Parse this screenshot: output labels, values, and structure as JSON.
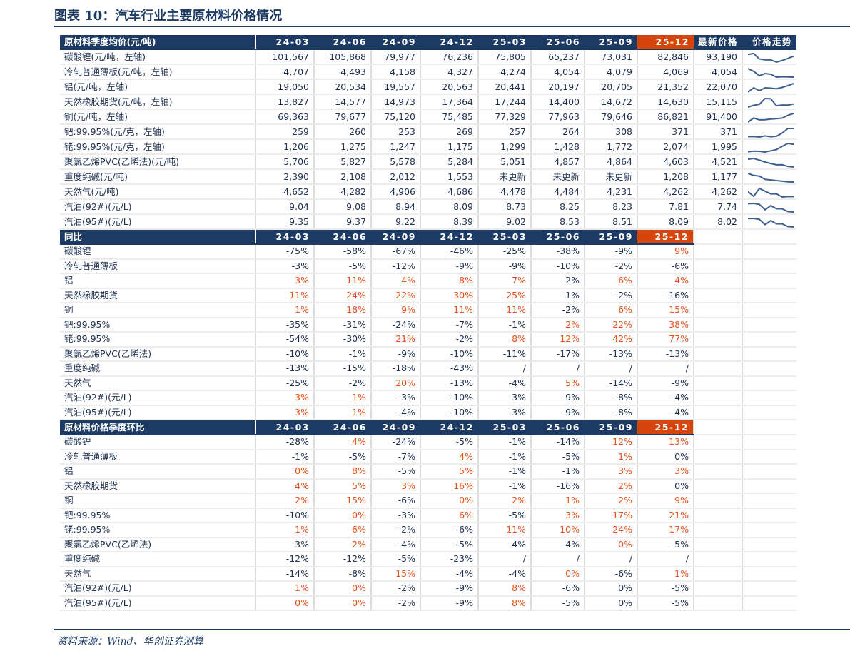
{
  "title": "图表 10：汽车行业主要原材料价格情况",
  "source": "资料来源：Wind、华创证券测算",
  "colors": {
    "header": "#1c3a63",
    "highlight": "#d6450c",
    "positive": "#e8501a",
    "text": "#1f3050",
    "sparkline": "#3d5f8f"
  },
  "periods": [
    "24-03",
    "24-06",
    "24-09",
    "24-12",
    "25-03",
    "25-06",
    "25-09",
    "25-12"
  ],
  "highlight_period": "25-12",
  "sections": [
    {
      "header": "原材料季度均价(元/吨)",
      "latest_label": "最新价格",
      "trend_label": "价格走势",
      "has_latest": true,
      "rows": [
        {
          "label": "碳酸锂(元/吨，左轴)",
          "values": [
            "101,567",
            "105,868",
            "79,977",
            "76,236",
            "75,805",
            "65,237",
            "73,031",
            "82,846"
          ],
          "latest": "93,190"
        },
        {
          "label": "冷轧普通薄板(元/吨，左轴)",
          "values": [
            "4,707",
            "4,493",
            "4,158",
            "4,327",
            "4,274",
            "4,054",
            "4,079",
            "4,069"
          ],
          "latest": "4,054"
        },
        {
          "label": "铝(元/吨，左轴)",
          "values": [
            "19,050",
            "20,534",
            "19,557",
            "20,563",
            "20,441",
            "20,197",
            "20,705",
            "21,352"
          ],
          "latest": "22,070"
        },
        {
          "label": "天然橡胶期货(元/吨，左轴)",
          "values": [
            "13,827",
            "14,577",
            "14,973",
            "17,364",
            "17,244",
            "14,400",
            "14,672",
            "14,630"
          ],
          "latest": "15,115"
        },
        {
          "label": "铜(元/吨，左轴)",
          "values": [
            "69,363",
            "79,677",
            "75,120",
            "75,485",
            "77,329",
            "77,963",
            "79,646",
            "86,821"
          ],
          "latest": "91,400"
        },
        {
          "label": "钯:99.95%(元/克，左轴)",
          "values": [
            "259",
            "260",
            "253",
            "269",
            "257",
            "264",
            "308",
            "371"
          ],
          "latest": "371"
        },
        {
          "label": "铑:99.95%(元/克，左轴)",
          "values": [
            "1,206",
            "1,275",
            "1,247",
            "1,175",
            "1,299",
            "1,428",
            "1,772",
            "2,074"
          ],
          "latest": "1,995"
        },
        {
          "label": "聚氯乙烯PVC(乙烯法)(元/吨)",
          "values": [
            "5,706",
            "5,827",
            "5,578",
            "5,284",
            "5,051",
            "4,857",
            "4,864",
            "4,603"
          ],
          "latest": "4,521"
        },
        {
          "label": "重度纯碱(元/吨)",
          "values": [
            "2,390",
            "2,108",
            "2,012",
            "1,553",
            "未更新",
            "未更新",
            "未更新",
            "1,208"
          ],
          "latest": "1,177"
        },
        {
          "label": "天然气(元/吨)",
          "values": [
            "4,652",
            "4,282",
            "4,906",
            "4,686",
            "4,478",
            "4,484",
            "4,231",
            "4,262"
          ],
          "latest": "4,262"
        },
        {
          "label": "汽油(92#)(元/L)",
          "values": [
            "9.04",
            "9.08",
            "8.94",
            "8.09",
            "8.73",
            "8.25",
            "8.23",
            "7.81"
          ],
          "latest": "7.74"
        },
        {
          "label": "汽油(95#)(元/L)",
          "values": [
            "9.35",
            "9.37",
            "9.22",
            "8.39",
            "9.02",
            "8.53",
            "8.51",
            "8.09"
          ],
          "latest": "8.02"
        }
      ]
    },
    {
      "header": "同比",
      "has_latest": false,
      "rows": [
        {
          "label": "碳酸锂",
          "values": [
            "-75%",
            "-58%",
            "-67%",
            "-46%",
            "-25%",
            "-38%",
            "-9%",
            "9%"
          ],
          "positive": "00000001"
        },
        {
          "label": "冷轧普通薄板",
          "values": [
            "-3%",
            "-5%",
            "-12%",
            "-9%",
            "-9%",
            "-10%",
            "-2%",
            "-6%"
          ],
          "positive": "00000000"
        },
        {
          "label": "铝",
          "values": [
            "3%",
            "11%",
            "4%",
            "8%",
            "7%",
            "-2%",
            "6%",
            "4%"
          ],
          "positive": "11111011"
        },
        {
          "label": "天然橡胶期货",
          "values": [
            "11%",
            "24%",
            "22%",
            "30%",
            "25%",
            "-1%",
            "-2%",
            "-16%"
          ],
          "positive": "11111000"
        },
        {
          "label": "铜",
          "values": [
            "1%",
            "18%",
            "9%",
            "11%",
            "11%",
            "-2%",
            "6%",
            "15%"
          ],
          "positive": "11111011"
        },
        {
          "label": "钯:99.95%",
          "values": [
            "-35%",
            "-31%",
            "-24%",
            "-7%",
            "-1%",
            "2%",
            "22%",
            "38%"
          ],
          "positive": "00000111"
        },
        {
          "label": "铑:99.95%",
          "values": [
            "-54%",
            "-30%",
            "21%",
            "-2%",
            "8%",
            "12%",
            "42%",
            "77%"
          ],
          "positive": "00101111"
        },
        {
          "label": "聚氯乙烯PVC(乙烯法)",
          "values": [
            "-10%",
            "-1%",
            "-9%",
            "-10%",
            "-11%",
            "-17%",
            "-13%",
            "-13%"
          ],
          "positive": "00000000"
        },
        {
          "label": "重度纯碱",
          "values": [
            "-13%",
            "-15%",
            "-18%",
            "-43%",
            "/",
            "/",
            "/",
            "/"
          ],
          "positive": "00000000"
        },
        {
          "label": "天然气",
          "values": [
            "-25%",
            "-2%",
            "20%",
            "-13%",
            "-4%",
            "5%",
            "-14%",
            "-9%"
          ],
          "positive": "00100100"
        },
        {
          "label": "汽油(92#)(元/L)",
          "values": [
            "3%",
            "1%",
            "-3%",
            "-10%",
            "-3%",
            "-9%",
            "-8%",
            "-4%"
          ],
          "positive": "11000000"
        },
        {
          "label": "汽油(95#)(元/L)",
          "values": [
            "3%",
            "1%",
            "-4%",
            "-10%",
            "-3%",
            "-9%",
            "-8%",
            "-4%"
          ],
          "positive": "11000000"
        }
      ]
    },
    {
      "header": "原材料价格季度环比",
      "has_latest": false,
      "rows": [
        {
          "label": "碳酸锂",
          "values": [
            "-28%",
            "4%",
            "-24%",
            "-5%",
            "-1%",
            "-14%",
            "12%",
            "13%"
          ],
          "positive": "01000011"
        },
        {
          "label": "冷轧普通薄板",
          "values": [
            "-1%",
            "-5%",
            "-7%",
            "4%",
            "-1%",
            "-5%",
            "1%",
            "0%"
          ],
          "positive": "00010010"
        },
        {
          "label": "铝",
          "values": [
            "0%",
            "8%",
            "-5%",
            "5%",
            "-1%",
            "-1%",
            "3%",
            "3%"
          ],
          "positive": "11010011"
        },
        {
          "label": "天然橡胶期货",
          "values": [
            "4%",
            "5%",
            "3%",
            "16%",
            "-1%",
            "-16%",
            "2%",
            "0%"
          ],
          "positive": "11110010"
        },
        {
          "label": "铜",
          "values": [
            "2%",
            "15%",
            "-6%",
            "0%",
            "2%",
            "1%",
            "2%",
            "9%"
          ],
          "positive": "11011111"
        },
        {
          "label": "钯:99.95%",
          "values": [
            "-10%",
            "0%",
            "-3%",
            "6%",
            "-5%",
            "3%",
            "17%",
            "21%"
          ],
          "positive": "01010111"
        },
        {
          "label": "铑:99.95%",
          "values": [
            "1%",
            "6%",
            "-2%",
            "-6%",
            "11%",
            "10%",
            "24%",
            "17%"
          ],
          "positive": "11001111"
        },
        {
          "label": "聚氯乙烯PVC(乙烯法)",
          "values": [
            "-3%",
            "2%",
            "-4%",
            "-5%",
            "-4%",
            "-4%",
            "0%",
            "-5%"
          ],
          "positive": "01000010"
        },
        {
          "label": "重度纯碱",
          "values": [
            "-12%",
            "-12%",
            "-5%",
            "-23%",
            "/",
            "/",
            "/",
            "/"
          ],
          "positive": "00000000"
        },
        {
          "label": "天然气",
          "values": [
            "-14%",
            "-8%",
            "15%",
            "-4%",
            "-4%",
            "0%",
            "-6%",
            "1%"
          ],
          "positive": "00100101"
        },
        {
          "label": "汽油(92#)(元/L)",
          "values": [
            "1%",
            "0%",
            "-2%",
            "-9%",
            "8%",
            "-6%",
            "0%",
            "-5%"
          ],
          "positive": "11001000"
        },
        {
          "label": "汽油(95#)(元/L)",
          "values": [
            "0%",
            "0%",
            "-2%",
            "-9%",
            "8%",
            "-5%",
            "0%",
            "-5%"
          ],
          "positive": "11001000"
        }
      ]
    }
  ]
}
